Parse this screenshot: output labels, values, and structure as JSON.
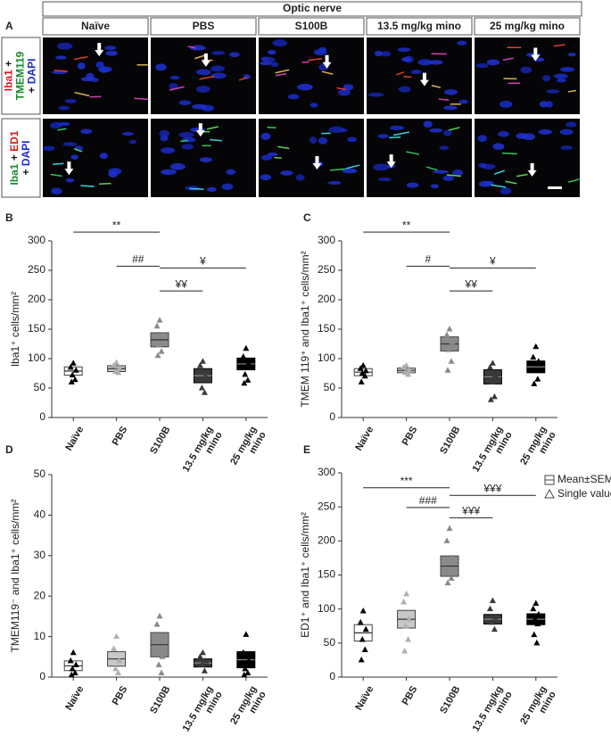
{
  "panel_labels": [
    "A",
    "B",
    "C",
    "D",
    "E"
  ],
  "panel_a": {
    "title": "Optic nerve",
    "columns": [
      "Naïve",
      "PBS",
      "S100B",
      "13.5 mg/kg mino",
      "25 mg/kg mino"
    ],
    "rows": [
      [
        "Iba1",
        "+",
        "TMEM119",
        "+",
        "DAPI"
      ],
      [
        "Iba1",
        "+",
        "ED1",
        "+",
        "DAPI"
      ]
    ]
  },
  "chart_data": [
    {
      "type": "meanbox",
      "ylabel": "Iba1⁺ cells/mm²",
      "categories": [
        "Naïve",
        "PBS",
        "S100B",
        "13.5 mg/kg mino",
        "25 mg/kg mino"
      ],
      "means": [
        79,
        83,
        132,
        71,
        91
      ],
      "sem": [
        7,
        5,
        12,
        12,
        10
      ],
      "points": [
        [
          92,
          85,
          80,
          72,
          64,
          60
        ],
        [
          93,
          88,
          83,
          78,
          76
        ],
        [
          165,
          155,
          140,
          123,
          112,
          105
        ],
        [
          95,
          88,
          70,
          50,
          42
        ],
        [
          117,
          103,
          92,
          73,
          63,
          58
        ]
      ],
      "colors": [
        "#ffffff",
        "#c8c8c8",
        "#8a8a8a",
        "#3a3a3a",
        "#000000"
      ],
      "point_colors": [
        "#000000",
        "#b0b0b0",
        "#8a8a8a",
        "#3a3a3a",
        "#000000"
      ],
      "ylim": [
        0,
        300
      ],
      "yticks": [
        0,
        50,
        100,
        150,
        200,
        250,
        300
      ],
      "annotations": [
        {
          "label": "**",
          "from": 0,
          "to": 2,
          "y": 315
        },
        {
          "label": "##",
          "from": 1,
          "to": 2,
          "y": 257
        },
        {
          "label": "¥",
          "from": 2,
          "to": 4,
          "y": 254
        },
        {
          "label": "¥¥",
          "from": 2,
          "to": 3,
          "y": 215
        }
      ]
    },
    {
      "type": "meanbox",
      "ylabel": "TMEM 119⁺ and Iba1⁺ cells/mm²",
      "categories": [
        "Naïve",
        "PBS",
        "S100B",
        "13.5 mg/kg mino",
        "25 mg/kg mino"
      ],
      "means": [
        77,
        80,
        125,
        69,
        86
      ],
      "sem": [
        6,
        4,
        12,
        12,
        10
      ],
      "points": [
        [
          88,
          83,
          79,
          75,
          70,
          60
        ],
        [
          88,
          85,
          80,
          76,
          73
        ],
        [
          150,
          140,
          128,
          115,
          95,
          80
        ],
        [
          92,
          85,
          72,
          60,
          35,
          30
        ],
        [
          120,
          102,
          95,
          80,
          65,
          57
        ]
      ],
      "colors": [
        "#ffffff",
        "#c8c8c8",
        "#8a8a8a",
        "#3a3a3a",
        "#000000"
      ],
      "point_colors": [
        "#000000",
        "#b0b0b0",
        "#8a8a8a",
        "#3a3a3a",
        "#000000"
      ],
      "ylim": [
        0,
        300
      ],
      "yticks": [
        0,
        50,
        100,
        150,
        200,
        250,
        300
      ],
      "annotations": [
        {
          "label": "**",
          "from": 0,
          "to": 2,
          "y": 315
        },
        {
          "label": "#",
          "from": 1,
          "to": 2,
          "y": 257
        },
        {
          "label": "¥",
          "from": 2,
          "to": 4,
          "y": 254
        },
        {
          "label": "¥¥",
          "from": 2,
          "to": 3,
          "y": 215
        }
      ]
    },
    {
      "type": "meanbox",
      "ylabel": "TMEM119⁻ and Iba1⁺ cells/mm²",
      "categories": [
        "Naïve",
        "PBS",
        "S100B",
        "13.5 mg/kg mino",
        "25 mg/kg mino"
      ],
      "means": [
        2.8,
        4.5,
        8,
        3.5,
        4.3
      ],
      "sem": [
        1.2,
        1.8,
        3,
        1,
        2
      ],
      "points": [
        [
          6,
          4,
          3,
          2,
          1,
          0.5
        ],
        [
          10,
          7,
          4,
          2,
          1
        ],
        [
          15,
          13,
          5,
          3,
          1
        ],
        [
          6,
          5,
          4,
          3,
          1.5
        ],
        [
          10.5,
          6,
          4,
          2,
          1,
          0.5
        ]
      ],
      "colors": [
        "#ffffff",
        "#c8c8c8",
        "#8a8a8a",
        "#3a3a3a",
        "#000000"
      ],
      "point_colors": [
        "#000000",
        "#b0b0b0",
        "#8a8a8a",
        "#3a3a3a",
        "#000000"
      ],
      "ylim": [
        0,
        50
      ],
      "yticks": [
        0,
        10,
        20,
        30,
        40,
        50
      ],
      "annotations": []
    },
    {
      "type": "meanbox",
      "ylabel": "ED1⁺ and Iba1⁺ cells/mm²",
      "categories": [
        "Naïve",
        "PBS",
        "S100B",
        "13.5 mg/kg mino",
        "25 mg/kg mino"
      ],
      "means": [
        65,
        85,
        163,
        85,
        85
      ],
      "sem": [
        12,
        13,
        15,
        7,
        8
      ],
      "points": [
        [
          97,
          80,
          70,
          55,
          40,
          25
        ],
        [
          122,
          110,
          85,
          75,
          55,
          38
        ],
        [
          218,
          200,
          175,
          155,
          145,
          138
        ],
        [
          112,
          100,
          88,
          80,
          70
        ],
        [
          108,
          100,
          92,
          85,
          78,
          62,
          50
        ]
      ],
      "colors": [
        "#ffffff",
        "#c8c8c8",
        "#8a8a8a",
        "#3a3a3a",
        "#000000"
      ],
      "point_colors": [
        "#000000",
        "#b0b0b0",
        "#8a8a8a",
        "#3a3a3a",
        "#000000"
      ],
      "ylim": [
        0,
        300
      ],
      "yticks": [
        0,
        50,
        100,
        150,
        200,
        250,
        300
      ],
      "annotations": [
        {
          "label": "***",
          "from": 0,
          "to": 2,
          "y": 278
        },
        {
          "label": "###",
          "from": 1,
          "to": 2,
          "y": 249
        },
        {
          "label": "¥¥¥",
          "from": 2,
          "to": 4,
          "y": 267
        },
        {
          "label": "¥¥¥",
          "from": 2,
          "to": 3,
          "y": 234
        }
      ],
      "legend": [
        "Mean±SEM",
        "Single value"
      ]
    }
  ]
}
